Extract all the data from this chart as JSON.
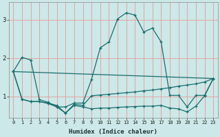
{
  "xlabel": "Humidex (Indice chaleur)",
  "bg_color": "#cce8e8",
  "line_color": "#1a6b6b",
  "grid_color": "#e89898",
  "xlim": [
    -0.5,
    23.5
  ],
  "ylim": [
    0.45,
    3.45
  ],
  "xticks": [
    0,
    1,
    2,
    3,
    4,
    5,
    6,
    7,
    8,
    9,
    10,
    11,
    12,
    13,
    14,
    15,
    16,
    17,
    18,
    19,
    20,
    21,
    22,
    23
  ],
  "yticks": [
    1,
    2,
    3
  ],
  "line1_x": [
    0,
    1,
    2,
    3,
    4,
    5,
    6,
    7,
    8,
    9,
    10,
    11,
    12,
    13,
    14,
    15,
    16,
    17,
    18,
    19,
    20,
    21,
    22,
    23
  ],
  "line1_y": [
    1.65,
    2.02,
    1.95,
    0.92,
    0.85,
    0.73,
    0.73,
    0.83,
    0.83,
    1.45,
    2.27,
    2.42,
    3.02,
    3.18,
    3.12,
    2.68,
    2.78,
    2.42,
    1.03,
    1.03,
    0.73,
    1.03,
    1.03,
    1.47
  ],
  "line2_x": [
    0,
    1,
    2,
    3,
    4,
    5,
    6,
    7,
    8,
    9,
    10,
    11,
    12,
    13,
    14,
    15,
    16,
    17,
    18,
    19,
    20,
    21,
    22,
    23
  ],
  "line2_y": [
    1.65,
    0.93,
    0.87,
    0.87,
    0.83,
    0.77,
    0.57,
    0.8,
    0.77,
    1.02,
    1.04,
    1.06,
    1.08,
    1.1,
    1.12,
    1.15,
    1.17,
    1.2,
    1.23,
    1.27,
    1.3,
    1.33,
    1.38,
    1.47
  ],
  "line3_x": [
    0,
    1,
    2,
    3,
    4,
    5,
    6,
    7,
    8,
    9,
    10,
    11,
    12,
    13,
    14,
    15,
    16,
    17,
    18,
    19,
    20,
    21,
    22,
    23
  ],
  "line3_y": [
    1.65,
    0.93,
    0.87,
    0.87,
    0.82,
    0.73,
    0.57,
    0.77,
    0.73,
    0.68,
    0.7,
    0.7,
    0.72,
    0.73,
    0.74,
    0.75,
    0.75,
    0.77,
    0.7,
    0.68,
    0.6,
    0.75,
    1.02,
    1.47
  ],
  "line4_x": [
    0,
    23
  ],
  "line4_y": [
    1.65,
    1.47
  ]
}
